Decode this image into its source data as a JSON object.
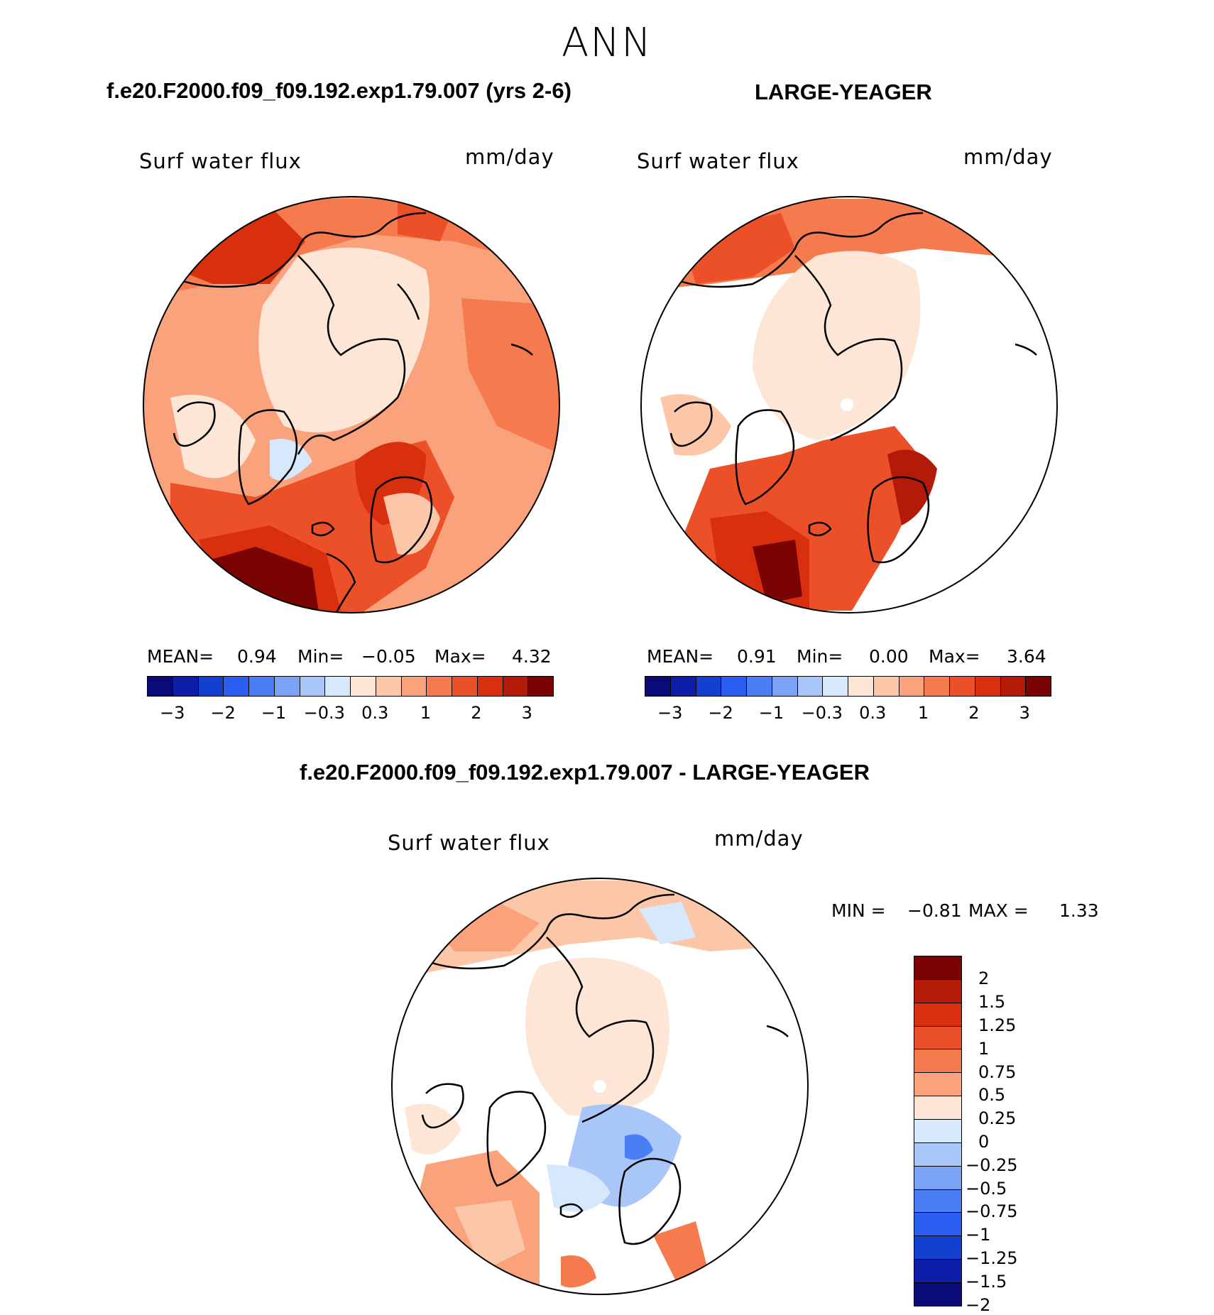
{
  "season": "ANN",
  "panels": [
    {
      "header": "f.e20.F2000.f09_f09.192.exp1.79.007 (yrs 2-6)",
      "label": "Surf water flux",
      "units": "mm/day",
      "stats": {
        "mean_label": "MEAN=",
        "mean": "0.94",
        "min_label": "Min=",
        "min": "−0.05",
        "max_label": "Max=",
        "max": "4.32"
      }
    },
    {
      "header": "LARGE-YEAGER",
      "label": "Surf water flux",
      "units": "mm/day",
      "stats": {
        "mean_label": "MEAN=",
        "mean": "0.91",
        "min_label": "Min=",
        "min": "0.00",
        "max_label": "Max=",
        "max": "3.64"
      }
    }
  ],
  "diff": {
    "header": "f.e20.F2000.f09_f09.192.exp1.79.007 - LARGE-YEAGER",
    "label": "Surf water flux",
    "units": "mm/day",
    "minmax": {
      "min_label": "MIN =",
      "min": "−0.81",
      "max_label": "MAX =",
      "max": "1.33"
    }
  },
  "colorbar_horizontal": {
    "colors": [
      "#0a0a78",
      "#0e1ea8",
      "#1440d0",
      "#2a5ef0",
      "#4a7ef5",
      "#7aa2f5",
      "#a8c6f8",
      "#d6e8fb",
      "#fde6d6",
      "#fcc7a8",
      "#f9a27c",
      "#f57a4e",
      "#ec5028",
      "#d8300e",
      "#b41a08",
      "#7a0303"
    ],
    "tick_labels": [
      "−3",
      "−2",
      "−1",
      "−0.3",
      "0.3",
      "1",
      "2",
      "3"
    ]
  },
  "colorbar_vertical": {
    "colors_top_to_bottom": [
      "#7a0303",
      "#b41a08",
      "#d8300e",
      "#ec5028",
      "#f57a4e",
      "#f9a27c",
      "#fde6d6",
      "#d6e8fb",
      "#a8c6f8",
      "#7aa2f5",
      "#4a7ef5",
      "#2a5ef0",
      "#1440d0",
      "#0e1ea8",
      "#0a0a78"
    ],
    "tick_labels": [
      "2",
      "1.5",
      "1.25",
      "1",
      "0.75",
      "0.5",
      "0.25",
      "0",
      "−0.25",
      "−0.5",
      "−0.75",
      "−1",
      "−1.25",
      "−1.5",
      "−2"
    ]
  }
}
